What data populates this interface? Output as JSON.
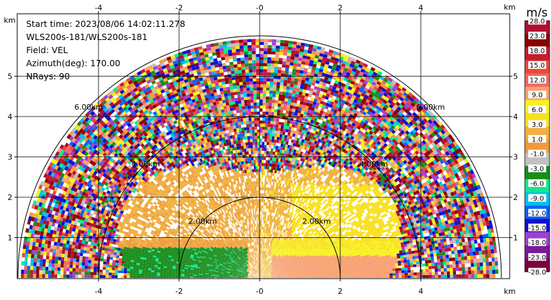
{
  "info": {
    "start_time": "Start time: 2023/08/06 14:02:11.278",
    "instrument": "WLS200s-181/WLS200s-181",
    "field": "Field: VEL",
    "azimuth": "Azimuth(deg): 170.00",
    "nrays": "NRays: 90"
  },
  "colorbar": {
    "unit": "m/s",
    "labels": [
      "28.0",
      "23.0",
      "18.0",
      "15.0",
      "12.0",
      "9.0",
      "6.0",
      "3.0",
      "1.0",
      "-1.0",
      "-3.0",
      "-6.0",
      "-9.0",
      "-12.0",
      "-15.0",
      "-18.0",
      "-23.0",
      "-28.0"
    ],
    "colors": [
      "#b01030",
      "#8b0000",
      "#c41a30",
      "#e84a3a",
      "#f06868",
      "#f8a070",
      "#f8f020",
      "#f8e020",
      "#f0b040",
      "#f09a3c",
      "#c0c0c0",
      "#1a8c1a",
      "#10e890",
      "#00c0f0",
      "#1060f0",
      "#1010d0",
      "#a040d0",
      "#7a1a9a",
      "#7a0040"
    ]
  },
  "chart_data": {
    "type": "heatmap",
    "title": "",
    "xlabel": "km",
    "ylabel": "km",
    "xlim": [
      -6.0,
      6.1
    ],
    "ylim": [
      0,
      6.0
    ],
    "xticks": [
      "-4",
      "-2",
      "-0",
      "2",
      "4"
    ],
    "xtick_values": [
      -4,
      -2,
      0,
      2,
      4
    ],
    "yticks": [
      "1",
      "2",
      "3",
      "4",
      "5"
    ],
    "ytick_values": [
      1,
      2,
      3,
      4,
      5
    ],
    "grid": true,
    "range_rings": [
      {
        "label": "2.00km",
        "radius_km": 2.0
      },
      {
        "label": "4.00km",
        "radius_km": 4.0
      },
      {
        "label": "6.00km",
        "radius_km": 6.0
      }
    ],
    "max_range_km": 6.0,
    "nrays": 90,
    "field": "VEL",
    "units": "m/s",
    "description_of_values": {
      "near_range_left_side_ms": -7.0,
      "near_range_right_side_ms": 5.0,
      "far_range": "noisy values spanning -28 to 28"
    }
  }
}
